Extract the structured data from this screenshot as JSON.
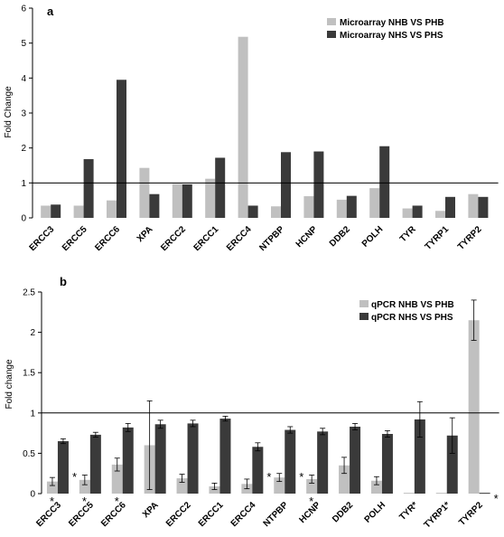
{
  "chart_data": [
    {
      "panel": "a",
      "type": "bar",
      "ylabel": "Fold Change",
      "ylim": [
        0,
        6
      ],
      "yticks": [
        "0",
        "1",
        "2",
        "3",
        "4",
        "5",
        "6"
      ],
      "baseline": 1,
      "legend_position": "top-right",
      "categories": [
        "ERCC3",
        "ERCC5",
        "ERCC6",
        "XPA",
        "ERCC2",
        "ERCC1",
        "ERCC4",
        "NTPBP",
        "HCNP",
        "DDB2",
        "POLH",
        "TYR",
        "TYRP1",
        "TYRP2"
      ],
      "series": [
        {
          "name": "Microarray NHB VS PHB",
          "color": "#c0c0c0",
          "values": [
            0.35,
            0.35,
            0.5,
            1.43,
            0.97,
            1.12,
            5.18,
            0.33,
            0.62,
            0.52,
            0.85,
            0.27,
            0.2,
            0.68
          ]
        },
        {
          "name": "Microarray NHS VS PHS",
          "color": "#3a3a3a",
          "values": [
            0.38,
            1.68,
            3.95,
            0.68,
            0.96,
            1.72,
            0.35,
            1.88,
            1.9,
            0.63,
            2.05,
            0.35,
            0.6,
            0.6
          ]
        }
      ]
    },
    {
      "panel": "b",
      "type": "bar",
      "ylabel": "Fold change",
      "ylim": [
        0,
        2.5
      ],
      "yticks": [
        "0",
        "0.5",
        "1",
        "1.5",
        "2",
        "2.5"
      ],
      "baseline": 1,
      "legend_position": "top-right",
      "categories": [
        "ERCC3",
        "ERCC5",
        "ERCC6",
        "XPA",
        "ERCC2",
        "ERCC1",
        "ERCC4",
        "NTPBP",
        "HCNP",
        "DDB2",
        "POLH",
        "TYR",
        "TYRP1",
        "TYRP2"
      ],
      "category_labels": [
        "ERCC3",
        "ERCC5",
        "ERCC6",
        "XPA",
        "ERCC2",
        "ERCC1",
        "ERCC4",
        "NTPBP",
        "HCNP",
        "DDB2",
        "POLH",
        "TYR*",
        "TYRP1*",
        "TYRP2"
      ],
      "series": [
        {
          "name": "qPCR  NHB VS PHB",
          "color": "#c0c0c0",
          "values": [
            0.15,
            0.17,
            0.36,
            0.6,
            0.19,
            0.09,
            0.12,
            0.2,
            0.18,
            0.35,
            0.16,
            0.01,
            0.01,
            2.15
          ],
          "errors": [
            0.05,
            0.06,
            0.08,
            0.55,
            0.05,
            0.04,
            0.06,
            0.05,
            0.05,
            0.1,
            0.05,
            0.0,
            0.0,
            0.25
          ]
        },
        {
          "name": "qPCR  NHS VS PHS",
          "color": "#3a3a3a",
          "values": [
            0.65,
            0.73,
            0.82,
            0.86,
            0.87,
            0.93,
            0.58,
            0.79,
            0.77,
            0.83,
            0.74,
            0.92,
            0.72,
            0.01
          ],
          "errors": [
            0.03,
            0.03,
            0.05,
            0.05,
            0.04,
            0.03,
            0.05,
            0.04,
            0.04,
            0.04,
            0.04,
            0.22,
            0.22,
            0.0
          ]
        }
      ],
      "annotations": [
        {
          "category": "ERCC3",
          "text": "*",
          "where": "right"
        },
        {
          "category": "ERCC3",
          "text": "*",
          "where": "below"
        },
        {
          "category": "ERCC5",
          "text": "*",
          "where": "below"
        },
        {
          "category": "ERCC6",
          "text": "*",
          "where": "below"
        },
        {
          "category": "ERCC4",
          "text": "*",
          "where": "right"
        },
        {
          "category": "NTPBP",
          "text": "*",
          "where": "right"
        },
        {
          "category": "HCNP",
          "text": "*",
          "where": "below"
        },
        {
          "category": "TYRP2",
          "text": "*",
          "where": "right"
        }
      ]
    }
  ]
}
